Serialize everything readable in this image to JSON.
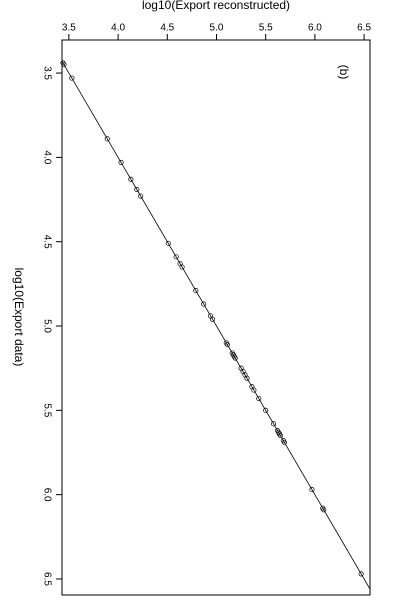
{
  "chart_data": {
    "type": "scatter",
    "x_label": "log10(Export data)",
    "y_label": "log10(Export reconstructed)",
    "annotation": "(b)",
    "x": [
      3.44,
      3.45,
      3.53,
      3.89,
      4.03,
      4.13,
      4.19,
      4.23,
      4.51,
      4.59,
      4.63,
      4.65,
      4.79,
      4.87,
      4.94,
      4.96,
      5.1,
      5.11,
      5.16,
      5.17,
      5.18,
      5.19,
      5.25,
      5.27,
      5.29,
      5.31,
      5.36,
      5.38,
      5.43,
      5.5,
      5.58,
      5.62,
      5.63,
      5.64,
      5.65,
      5.68,
      5.69,
      5.97,
      6.08,
      6.09,
      6.47
    ],
    "values": [
      3.44,
      3.45,
      3.53,
      3.89,
      4.03,
      4.13,
      4.19,
      4.23,
      4.51,
      4.59,
      4.63,
      4.65,
      4.79,
      4.87,
      4.94,
      4.96,
      5.1,
      5.11,
      5.16,
      5.17,
      5.18,
      5.19,
      5.25,
      5.27,
      5.29,
      5.31,
      5.36,
      5.38,
      5.43,
      5.5,
      5.58,
      5.62,
      5.63,
      5.64,
      5.65,
      5.68,
      5.69,
      5.97,
      6.08,
      6.09,
      6.47
    ],
    "color": "#000000",
    "reference_line": {
      "slope": 1,
      "intercept": 0
    },
    "xlim": [
      3.304,
      6.595
    ],
    "xticks": [
      3.5,
      {
        "value": 4,
        "label": "4.0"
      },
      4.5,
      {
        "value": 5,
        "label": "5.0"
      },
      5.5,
      {
        "value": 6,
        "label": "6.0"
      },
      6.5
    ],
    "ylim": [
      3.43,
      6.56
    ],
    "yticks": [
      3.5,
      {
        "value": 4,
        "label": "4.0"
      },
      4.5,
      {
        "value": 5,
        "label": "5.0"
      },
      5.5,
      {
        "value": 6,
        "label": "6.0"
      },
      6.5
    ]
  }
}
